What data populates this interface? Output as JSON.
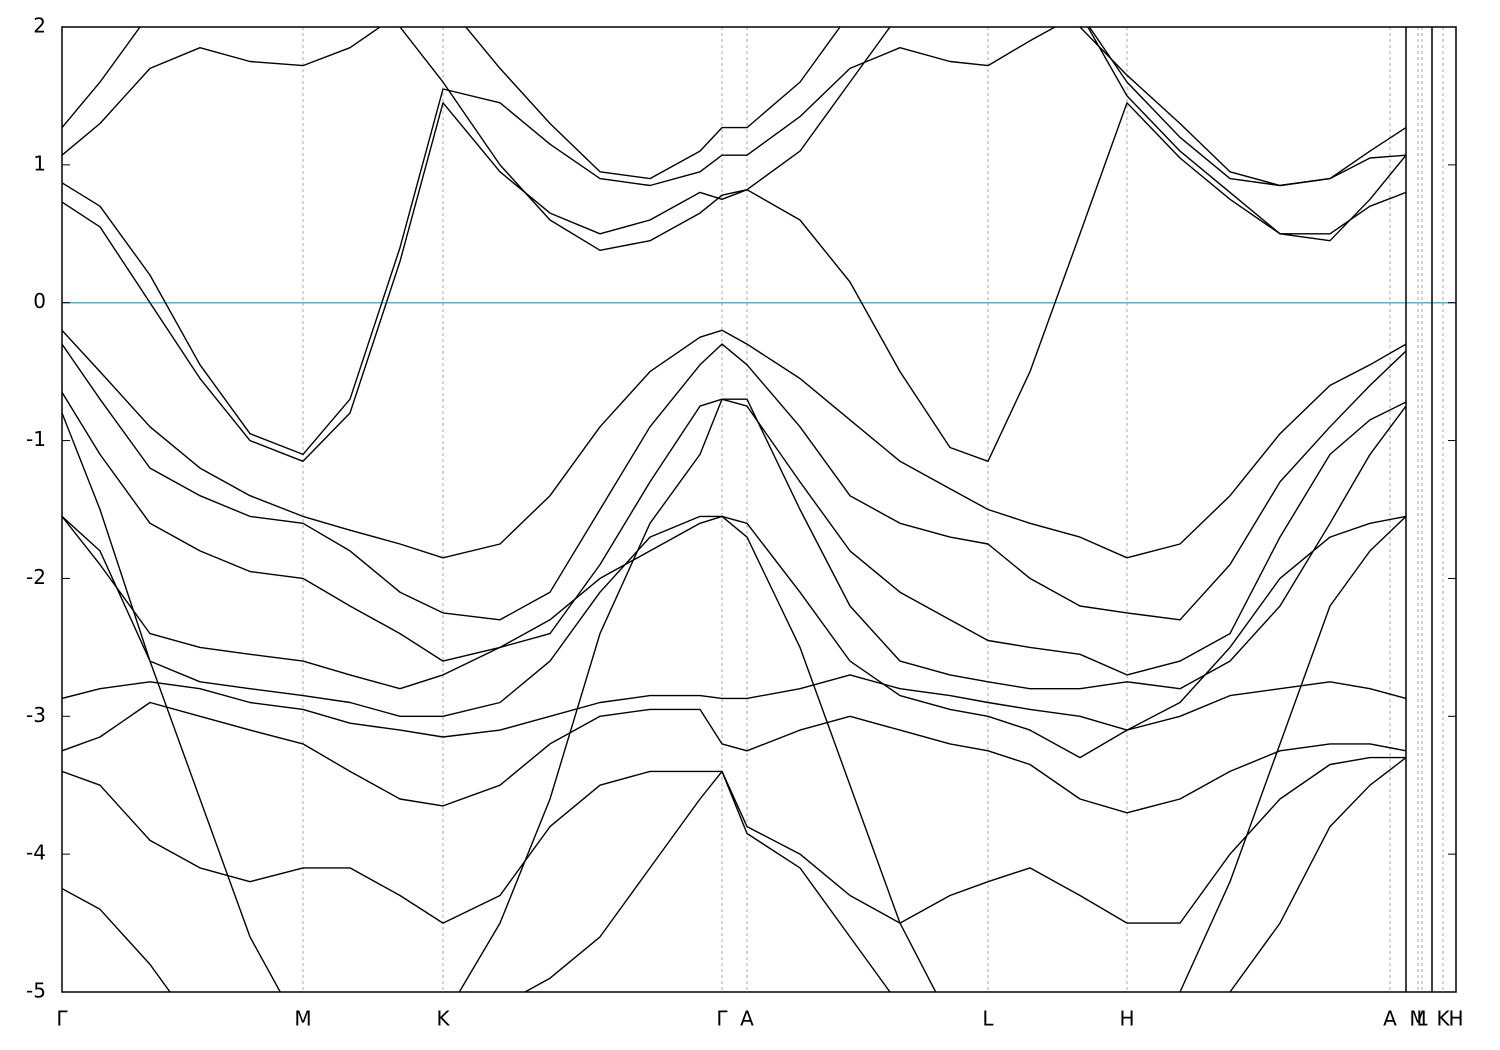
{
  "chart_data": {
    "type": "line",
    "xlim": [
      0,
      1.394
    ],
    "ylim": [
      -5,
      2
    ],
    "yticks": [
      -5,
      -4,
      -3,
      -2,
      -1,
      0,
      1,
      2
    ],
    "xticks": [
      {
        "value": 0,
        "label": "Γ"
      },
      {
        "value": 0.241,
        "label": "M"
      },
      {
        "value": 0.381,
        "label": "K"
      },
      {
        "value": 0.66,
        "label": "Γ"
      },
      {
        "value": 0.685,
        "label": "A"
      },
      {
        "value": 0.926,
        "label": "L"
      },
      {
        "value": 1.065,
        "label": "H"
      },
      {
        "value": 1.328,
        "label": "A"
      },
      {
        "value": 1.356,
        "label": "M"
      },
      {
        "value": 1.36,
        "label": "L"
      },
      {
        "value": 1.381,
        "label": "K"
      },
      {
        "value": 1.394,
        "label": "H"
      }
    ],
    "grid": true,
    "segment_breaks": [
      1.344,
      1.37
    ],
    "zero_line": {
      "value": 0,
      "color": "#5ab0c8"
    },
    "x": [
      0,
      0.038,
      0.088,
      0.138,
      0.188,
      0.241,
      0.288,
      0.338,
      0.381,
      0.438,
      0.488,
      0.538,
      0.588,
      0.638,
      0.66,
      0.685,
      0.738,
      0.788,
      0.838,
      0.888,
      0.926,
      0.968,
      1.018,
      1.065,
      1.118,
      1.168,
      1.218,
      1.268,
      1.308,
      1.344
    ],
    "series": [
      {
        "color": "#000000",
        "values": [
          0.73,
          0.55,
          0.0,
          -0.55,
          -1.0,
          -1.15,
          -0.8,
          0.3,
          1.45,
          0.95,
          0.65,
          0.5,
          0.6,
          0.8,
          0.75,
          0.82,
          0.6,
          0.15,
          -0.5,
          -1.05,
          -1.15,
          -0.5,
          0.5,
          1.45,
          1.05,
          0.75,
          0.5,
          0.5,
          0.7,
          0.8
        ]
      },
      {
        "color": "#000000",
        "values": [
          0.87,
          0.7,
          0.2,
          -0.45,
          -0.95,
          -1.1,
          -0.7,
          0.4,
          1.55,
          1.45,
          1.15,
          0.9,
          0.85,
          0.95,
          1.07,
          1.07,
          1.35,
          1.7,
          1.85,
          1.75,
          1.72,
          1.9,
          2.1,
          1.6,
          1.2,
          0.9,
          0.85,
          0.9,
          1.05,
          1.07
        ]
      },
      {
        "color": "#000000",
        "values": [
          1.07,
          1.3,
          1.7,
          1.85,
          1.75,
          1.72,
          1.85,
          2.1,
          2.2,
          1.7,
          1.3,
          0.95,
          0.9,
          1.1,
          1.27,
          1.27,
          1.6,
          2.1,
          2.3,
          2.3,
          2.2,
          2.1,
          2.0,
          1.65,
          1.3,
          0.95,
          0.85,
          0.9,
          1.1,
          1.27
        ]
      },
      {
        "color": "#000000",
        "values": [
          1.27,
          1.6,
          2.1,
          2.3,
          2.3,
          2.3,
          2.2,
          2.0,
          1.6,
          1.0,
          0.6,
          0.38,
          0.45,
          0.65,
          0.78,
          0.82,
          1.1,
          1.6,
          2.1,
          2.3,
          2.3,
          2.3,
          2.1,
          1.5,
          1.1,
          0.8,
          0.5,
          0.45,
          0.75,
          1.07
        ]
      },
      {
        "color": "#000000",
        "values": [
          -0.2,
          -0.5,
          -0.9,
          -1.2,
          -1.4,
          -1.55,
          -1.65,
          -1.75,
          -1.85,
          -1.75,
          -1.4,
          -0.9,
          -0.5,
          -0.25,
          -0.2,
          -0.3,
          -0.55,
          -0.85,
          -1.15,
          -1.35,
          -1.5,
          -1.6,
          -1.7,
          -1.85,
          -1.75,
          -1.4,
          -0.95,
          -0.6,
          -0.45,
          -0.3
        ]
      },
      {
        "color": "#000000",
        "values": [
          -0.3,
          -0.7,
          -1.2,
          -1.4,
          -1.55,
          -1.6,
          -1.8,
          -2.1,
          -2.25,
          -2.3,
          -2.1,
          -1.5,
          -0.9,
          -0.45,
          -0.3,
          -0.45,
          -0.9,
          -1.4,
          -1.6,
          -1.7,
          -1.75,
          -2.0,
          -2.2,
          -2.25,
          -2.3,
          -1.9,
          -1.3,
          -0.9,
          -0.6,
          -0.35
        ]
      },
      {
        "color": "#000000",
        "values": [
          -0.65,
          -1.1,
          -1.6,
          -1.8,
          -1.95,
          -2.0,
          -2.2,
          -2.4,
          -2.6,
          -2.5,
          -2.4,
          -1.9,
          -1.3,
          -0.75,
          -0.7,
          -0.75,
          -1.3,
          -1.8,
          -2.1,
          -2.3,
          -2.45,
          -2.5,
          -2.55,
          -2.7,
          -2.6,
          -2.4,
          -1.7,
          -1.1,
          -0.85,
          -0.72
        ]
      },
      {
        "color": "#000000",
        "values": [
          -1.55,
          -1.8,
          -2.6,
          -2.75,
          -2.8,
          -2.85,
          -2.9,
          -3.0,
          -3.0,
          -2.9,
          -2.6,
          -2.1,
          -1.7,
          -1.55,
          -1.55,
          -1.6,
          -2.1,
          -2.6,
          -2.85,
          -2.95,
          -3.0,
          -3.1,
          -3.3,
          -3.1,
          -2.9,
          -2.5,
          -2.0,
          -1.7,
          -1.6,
          -1.55
        ]
      },
      {
        "color": "#000000",
        "values": [
          -2.87,
          -2.8,
          -2.75,
          -2.8,
          -2.9,
          -2.95,
          -3.05,
          -3.1,
          -3.15,
          -3.1,
          -3.0,
          -2.9,
          -2.85,
          -2.85,
          -2.87,
          -2.87,
          -2.8,
          -2.7,
          -2.8,
          -2.85,
          -2.9,
          -2.95,
          -3.0,
          -3.1,
          -3.0,
          -2.85,
          -2.8,
          -2.75,
          -2.8,
          -2.87
        ]
      },
      {
        "color": "#000000",
        "values": [
          -3.25,
          -3.15,
          -2.9,
          -3.0,
          -3.1,
          -3.2,
          -3.4,
          -3.6,
          -3.65,
          -3.5,
          -3.2,
          -3.0,
          -2.95,
          -2.95,
          -3.2,
          -3.25,
          -3.1,
          -3.0,
          -3.1,
          -3.2,
          -3.25,
          -3.35,
          -3.6,
          -3.7,
          -3.6,
          -3.4,
          -3.25,
          -3.2,
          -3.2,
          -3.25
        ]
      },
      {
        "color": "#000000",
        "values": [
          -3.4,
          -3.5,
          -3.9,
          -4.1,
          -4.2,
          -4.1,
          -4.1,
          -4.3,
          -4.5,
          -4.3,
          -3.8,
          -3.5,
          -3.4,
          -3.4,
          -3.4,
          -3.8,
          -4.0,
          -4.3,
          -4.5,
          -4.3,
          -4.2,
          -4.1,
          -4.3,
          -4.5,
          -4.5,
          -4.0,
          -3.6,
          -3.35,
          -3.3,
          -3.3
        ]
      },
      {
        "color": "#000000",
        "values": [
          -4.25,
          -4.4,
          -4.8,
          -5.3,
          -5.5,
          -5.5,
          -5.5,
          -5.4,
          -5.3,
          -5.1,
          -4.9,
          -4.6,
          -4.1,
          -3.6,
          -3.4,
          -3.85,
          -4.1,
          -4.6,
          -5.1,
          -5.4,
          -5.5,
          -5.5,
          -5.3,
          -5.2,
          -5.1,
          -5.0,
          -4.5,
          -3.8,
          -3.5,
          -3.3
        ]
      },
      {
        "color": "#000000",
        "values": [
          -0.8,
          -1.5,
          -2.6,
          -3.6,
          -4.6,
          -5.3,
          -5.5,
          -5.4,
          -5.2,
          -4.5,
          -3.6,
          -2.4,
          -1.6,
          -1.1,
          -0.7,
          -0.7,
          -1.5,
          -2.2,
          -2.6,
          -2.7,
          -2.75,
          -2.8,
          -2.8,
          -2.75,
          -2.8,
          -2.6,
          -2.2,
          -1.6,
          -1.1,
          -0.75
        ]
      },
      {
        "color": "#000000",
        "values": [
          -1.55,
          -1.9,
          -2.4,
          -2.5,
          -2.55,
          -2.6,
          -2.7,
          -2.8,
          -2.7,
          -2.5,
          -2.3,
          -2.0,
          -1.8,
          -1.6,
          -1.55,
          -1.7,
          -2.5,
          -3.5,
          -4.5,
          -5.2,
          -5.5,
          -5.5,
          -5.3,
          -5.1,
          -5.0,
          -4.2,
          -3.2,
          -2.2,
          -1.8,
          -1.55
        ]
      }
    ]
  }
}
